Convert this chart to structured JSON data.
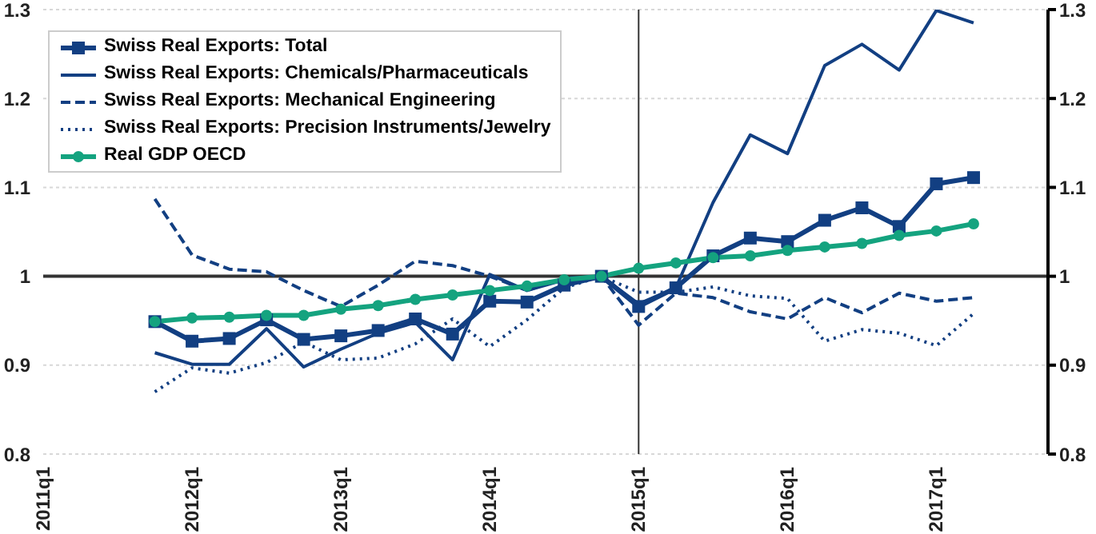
{
  "chart_data": {
    "type": "line",
    "categories": [
      "2011q1",
      null,
      null,
      null,
      "2012q1",
      null,
      null,
      null,
      "2013q1",
      null,
      null,
      null,
      "2014q1",
      null,
      null,
      null,
      "2015q1",
      null,
      null,
      null,
      "2016q1",
      null,
      null,
      null,
      "2017q1",
      null,
      null,
      null
    ],
    "series": [
      {
        "name": "Swiss Real Exports: Total",
        "color": "#123f82",
        "marker": "square",
        "line_style": "solid",
        "values": [
          null,
          null,
          null,
          0.949,
          0.927,
          0.93,
          0.951,
          0.929,
          0.933,
          0.939,
          0.952,
          0.935,
          0.972,
          0.971,
          0.99,
          1.0,
          0.966,
          0.987,
          1.023,
          1.043,
          1.039,
          1.063,
          1.077,
          1.056,
          1.104,
          1.111,
          null,
          null
        ]
      },
      {
        "name": "Swiss Real Exports: Chemicals/Pharmaceuticals",
        "color": "#123f82",
        "marker": "none",
        "line_style": "solid",
        "values": [
          null,
          null,
          null,
          0.914,
          0.901,
          0.901,
          0.941,
          0.898,
          0.918,
          0.936,
          0.948,
          0.906,
          1.002,
          0.984,
          0.996,
          1.0,
          0.969,
          0.987,
          1.083,
          1.159,
          1.138,
          1.237,
          1.261,
          1.232,
          1.299,
          1.285,
          null,
          null
        ]
      },
      {
        "name": "Swiss Real Exports: Mechanical Engineering",
        "color": "#123f82",
        "marker": "none",
        "line_style": "dashed",
        "values": [
          null,
          null,
          null,
          1.087,
          1.024,
          1.008,
          1.005,
          0.984,
          0.966,
          0.99,
          1.017,
          1.012,
          1.0,
          0.984,
          0.998,
          1.0,
          0.945,
          0.981,
          0.976,
          0.96,
          0.952,
          0.976,
          0.959,
          0.981,
          0.972,
          0.976,
          null,
          null
        ]
      },
      {
        "name": "Swiss Real Exports: Precision Instruments/Jewelry",
        "color": "#123f82",
        "marker": "none",
        "line_style": "dotted",
        "values": [
          null,
          null,
          null,
          0.87,
          0.897,
          0.891,
          0.903,
          0.926,
          0.906,
          0.908,
          0.924,
          0.952,
          0.921,
          0.951,
          0.987,
          1.0,
          0.982,
          0.982,
          0.988,
          0.978,
          0.975,
          0.927,
          0.94,
          0.936,
          0.922,
          0.958,
          null,
          null
        ]
      },
      {
        "name": "Real GDP OECD",
        "color": "#14a37f",
        "marker": "circle",
        "line_style": "solid",
        "values": [
          null,
          null,
          null,
          0.949,
          0.953,
          0.954,
          0.956,
          0.956,
          0.963,
          0.967,
          0.974,
          0.979,
          0.984,
          0.989,
          0.996,
          1.0,
          1.009,
          1.015,
          1.021,
          1.023,
          1.029,
          1.033,
          1.037,
          1.046,
          1.051,
          1.059,
          null,
          null
        ]
      }
    ],
    "ylim": [
      0.8,
      1.3
    ],
    "yticks": [
      0.8,
      0.9,
      1,
      1.1,
      1.2,
      1.3
    ],
    "y2lim": [
      0.8,
      1.3
    ],
    "y2ticks": [
      0.8,
      0.9,
      1,
      1.1,
      1.2,
      1.3
    ],
    "ref_lines": [
      {
        "axis": "y",
        "value": 1,
        "color": "#333333"
      },
      {
        "axis": "x",
        "value": "2015q1",
        "color": "#333333"
      }
    ],
    "grid": "y",
    "legend": "top left"
  }
}
